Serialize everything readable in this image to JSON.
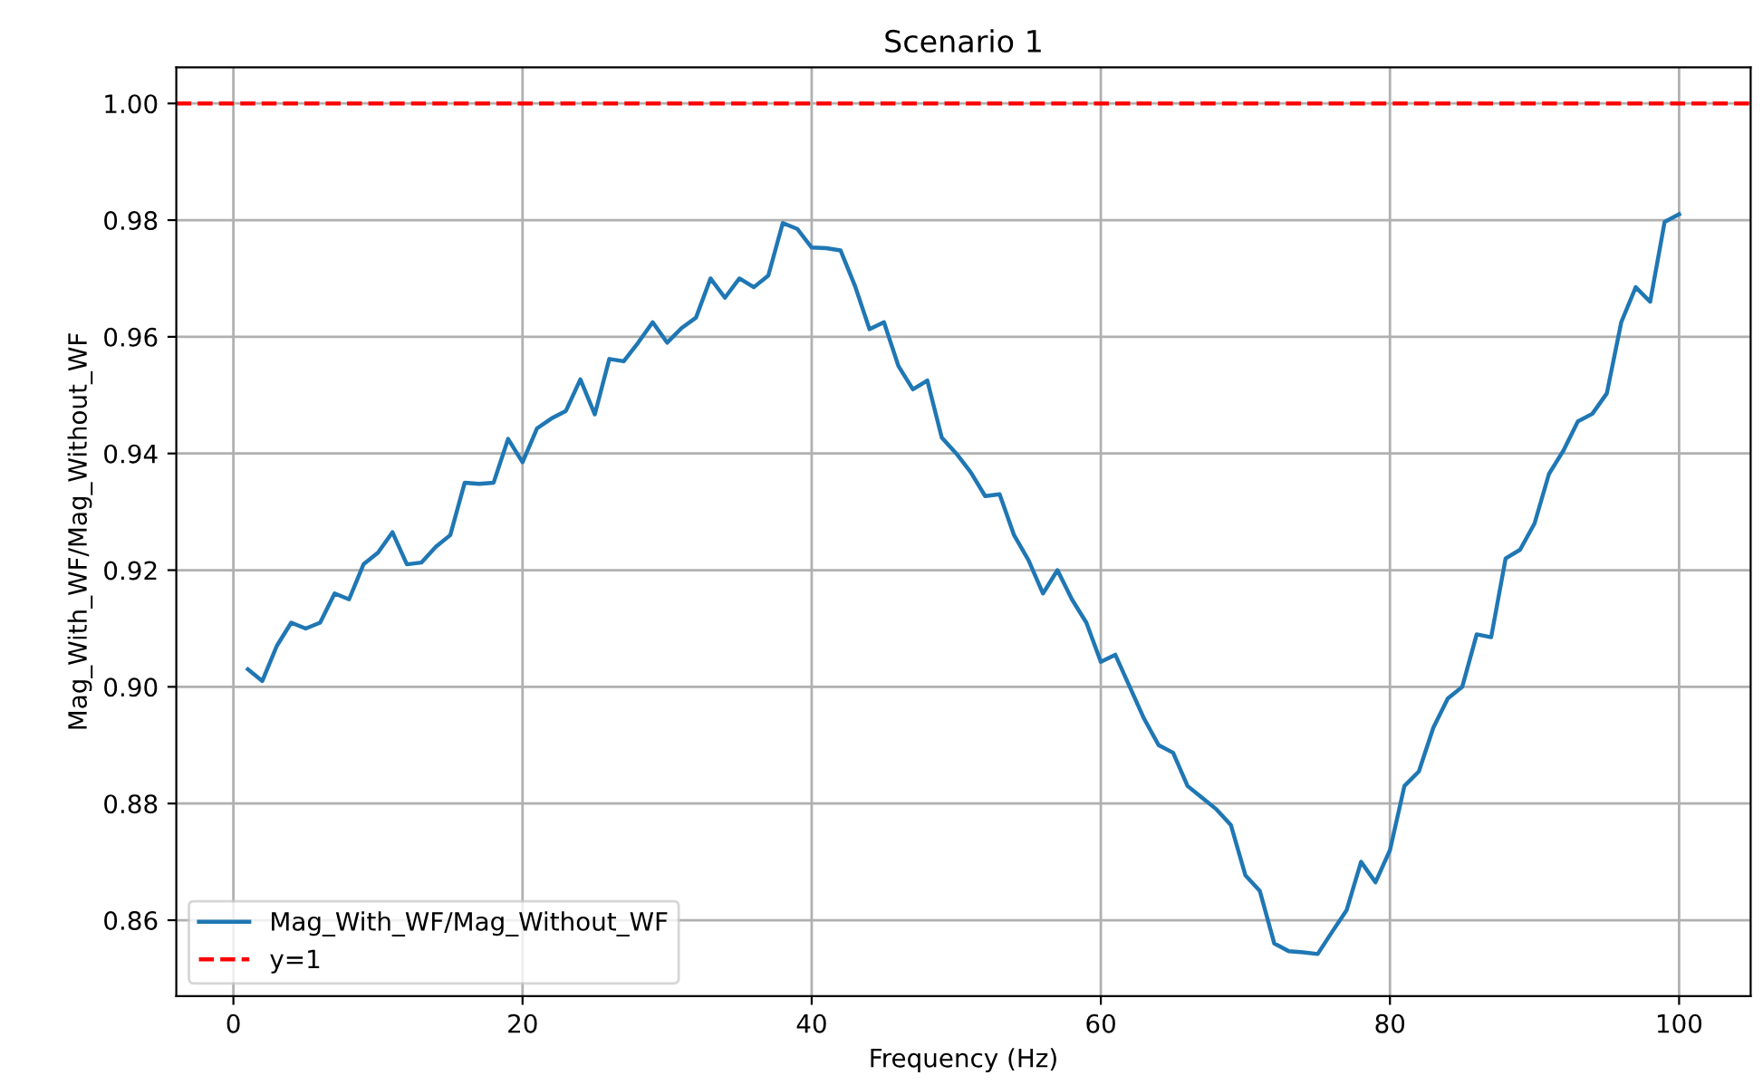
{
  "chart_data": {
    "type": "line",
    "title": "Scenario 1",
    "xlabel": "Frequency (Hz)",
    "ylabel": "Mag_With_WF/Mag_Without_WF",
    "x": [
      1,
      2,
      3,
      4,
      5,
      6,
      7,
      8,
      9,
      10,
      11,
      12,
      13,
      14,
      15,
      16,
      17,
      18,
      19,
      20,
      21,
      22,
      23,
      24,
      25,
      26,
      27,
      28,
      29,
      30,
      31,
      32,
      33,
      34,
      35,
      36,
      37,
      38,
      39,
      40,
      41,
      42,
      43,
      44,
      45,
      46,
      47,
      48,
      49,
      50,
      51,
      52,
      53,
      54,
      55,
      56,
      57,
      58,
      59,
      60,
      61,
      62,
      63,
      64,
      65,
      66,
      67,
      68,
      69,
      70,
      71,
      72,
      73,
      74,
      75,
      76,
      77,
      78,
      79,
      80,
      81,
      82,
      83,
      84,
      85,
      86,
      87,
      88,
      89,
      90,
      91,
      92,
      93,
      94,
      95,
      96,
      97,
      98,
      99,
      100
    ],
    "series": [
      {
        "name": "Mag_With_WF/Mag_Without_WF",
        "color": "#1f77b4",
        "values": [
          0.903,
          0.901,
          0.907,
          0.911,
          0.91,
          0.911,
          0.916,
          0.915,
          0.921,
          0.923,
          0.9265,
          0.921,
          0.9213,
          0.924,
          0.926,
          0.935,
          0.9348,
          0.935,
          0.9425,
          0.9385,
          0.9443,
          0.946,
          0.9473,
          0.9527,
          0.9467,
          0.9562,
          0.9558,
          0.959,
          0.9625,
          0.959,
          0.9615,
          0.9633,
          0.97,
          0.9667,
          0.97,
          0.9685,
          0.9705,
          0.9795,
          0.9785,
          0.9753,
          0.9752,
          0.9748,
          0.9687,
          0.9613,
          0.9625,
          0.955,
          0.951,
          0.9525,
          0.9427,
          0.94,
          0.9368,
          0.9327,
          0.933,
          0.926,
          0.9217,
          0.916,
          0.92,
          0.915,
          0.911,
          0.9043,
          0.9055,
          0.9,
          0.8945,
          0.89,
          0.8887,
          0.883,
          0.881,
          0.879,
          0.8763,
          0.8677,
          0.865,
          0.856,
          0.8547,
          0.8545,
          0.8542,
          0.858,
          0.8617,
          0.87,
          0.8665,
          0.872,
          0.883,
          0.8855,
          0.893,
          0.898,
          0.9,
          0.909,
          0.9085,
          0.922,
          0.9235,
          0.928,
          0.9365,
          0.9405,
          0.9455,
          0.9468,
          0.9503,
          0.9625,
          0.9685,
          0.966,
          0.9797,
          0.981
        ]
      }
    ],
    "ref_lines": [
      {
        "axis": "y",
        "value": 1.0,
        "label": "y=1",
        "color": "#ff0000",
        "line_style": "dashed"
      }
    ],
    "xlim": [
      -3.95,
      104.95
    ],
    "ylim": [
      0.847,
      1.0062
    ],
    "xticks": [
      0,
      20,
      40,
      60,
      80,
      100
    ],
    "yticks": [
      {
        "value": 0.86,
        "label": "0.86"
      },
      {
        "value": 0.88,
        "label": "0.88"
      },
      {
        "value": 0.9,
        "label": "0.90"
      },
      {
        "value": 0.92,
        "label": "0.92"
      },
      {
        "value": 0.94,
        "label": "0.94"
      },
      {
        "value": 0.96,
        "label": "0.96"
      },
      {
        "value": 0.98,
        "label": "0.98"
      },
      {
        "value": 1.0,
        "label": "1.00"
      }
    ],
    "grid": true,
    "legend": "bottom left",
    "line_style": "solid",
    "marker": "none"
  }
}
